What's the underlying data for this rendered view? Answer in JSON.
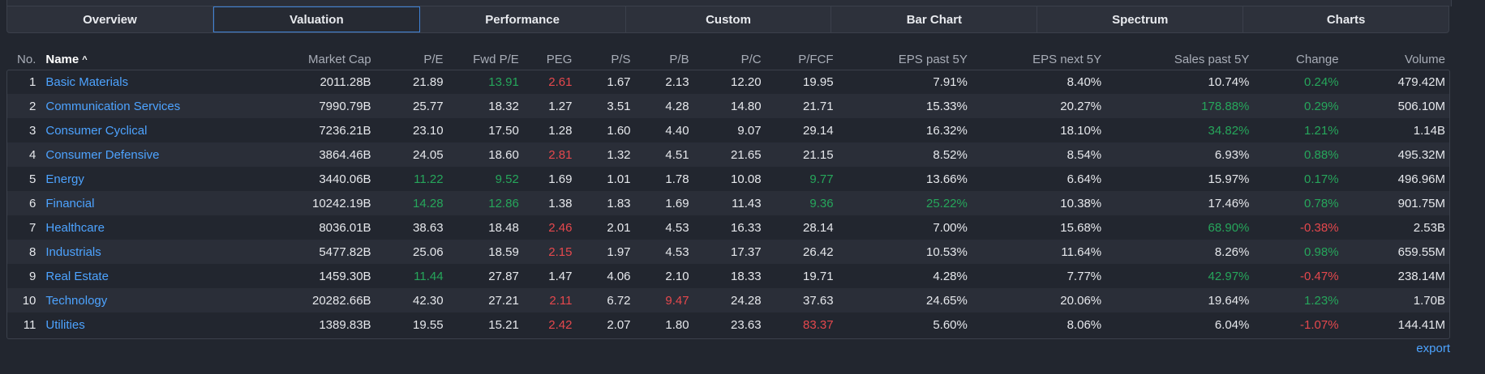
{
  "tabs": [
    "Overview",
    "Valuation",
    "Performance",
    "Custom",
    "Bar Chart",
    "Spectrum",
    "Charts"
  ],
  "active_tab": "Valuation",
  "columns": [
    "No.",
    "Name",
    "Market Cap",
    "P/E",
    "Fwd P/E",
    "PEG",
    "P/S",
    "P/B",
    "P/C",
    "P/FCF",
    "EPS past 5Y",
    "EPS next 5Y",
    "Sales past 5Y",
    "Change",
    "Volume"
  ],
  "sorted_column": "Name",
  "sort_indicator": "^",
  "colors": {
    "positive": "#26a65b",
    "negative": "#e5484d",
    "link": "#4da3ff",
    "accent": "#3f82d6"
  },
  "rows": [
    {
      "no": "1",
      "name": "Basic Materials",
      "market_cap": "2011.28B",
      "pe": "21.89",
      "fwd_pe": "13.91",
      "peg": "2.61",
      "ps": "1.67",
      "pb": "2.13",
      "pc": "12.20",
      "pfcf": "19.95",
      "eps_past_5y": "7.91%",
      "eps_next_5y": "8.40%",
      "sales_past_5y": "10.74%",
      "change": "0.24%",
      "volume": "479.42M",
      "colors": {
        "fwd_pe": "pos",
        "peg": "neg",
        "change": "pos"
      }
    },
    {
      "no": "2",
      "name": "Communication Services",
      "market_cap": "7990.79B",
      "pe": "25.77",
      "fwd_pe": "18.32",
      "peg": "1.27",
      "ps": "3.51",
      "pb": "4.28",
      "pc": "14.80",
      "pfcf": "21.71",
      "eps_past_5y": "15.33%",
      "eps_next_5y": "20.27%",
      "sales_past_5y": "178.88%",
      "change": "0.29%",
      "volume": "506.10M",
      "colors": {
        "sales_past_5y": "pos",
        "change": "pos"
      }
    },
    {
      "no": "3",
      "name": "Consumer Cyclical",
      "market_cap": "7236.21B",
      "pe": "23.10",
      "fwd_pe": "17.50",
      "peg": "1.28",
      "ps": "1.60",
      "pb": "4.40",
      "pc": "9.07",
      "pfcf": "29.14",
      "eps_past_5y": "16.32%",
      "eps_next_5y": "18.10%",
      "sales_past_5y": "34.82%",
      "change": "1.21%",
      "volume": "1.14B",
      "colors": {
        "sales_past_5y": "pos",
        "change": "pos"
      }
    },
    {
      "no": "4",
      "name": "Consumer Defensive",
      "market_cap": "3864.46B",
      "pe": "24.05",
      "fwd_pe": "18.60",
      "peg": "2.81",
      "ps": "1.32",
      "pb": "4.51",
      "pc": "21.65",
      "pfcf": "21.15",
      "eps_past_5y": "8.52%",
      "eps_next_5y": "8.54%",
      "sales_past_5y": "6.93%",
      "change": "0.88%",
      "volume": "495.32M",
      "colors": {
        "peg": "neg",
        "change": "pos"
      }
    },
    {
      "no": "5",
      "name": "Energy",
      "market_cap": "3440.06B",
      "pe": "11.22",
      "fwd_pe": "9.52",
      "peg": "1.69",
      "ps": "1.01",
      "pb": "1.78",
      "pc": "10.08",
      "pfcf": "9.77",
      "eps_past_5y": "13.66%",
      "eps_next_5y": "6.64%",
      "sales_past_5y": "15.97%",
      "change": "0.17%",
      "volume": "496.96M",
      "colors": {
        "pe": "pos",
        "fwd_pe": "pos",
        "pfcf": "pos",
        "change": "pos"
      }
    },
    {
      "no": "6",
      "name": "Financial",
      "market_cap": "10242.19B",
      "pe": "14.28",
      "fwd_pe": "12.86",
      "peg": "1.38",
      "ps": "1.83",
      "pb": "1.69",
      "pc": "11.43",
      "pfcf": "9.36",
      "eps_past_5y": "25.22%",
      "eps_next_5y": "10.38%",
      "sales_past_5y": "17.46%",
      "change": "0.78%",
      "volume": "901.75M",
      "colors": {
        "pe": "pos",
        "fwd_pe": "pos",
        "pfcf": "pos",
        "eps_past_5y": "pos",
        "change": "pos"
      }
    },
    {
      "no": "7",
      "name": "Healthcare",
      "market_cap": "8036.01B",
      "pe": "38.63",
      "fwd_pe": "18.48",
      "peg": "2.46",
      "ps": "2.01",
      "pb": "4.53",
      "pc": "16.33",
      "pfcf": "28.14",
      "eps_past_5y": "7.00%",
      "eps_next_5y": "15.68%",
      "sales_past_5y": "68.90%",
      "change": "-0.38%",
      "volume": "2.53B",
      "colors": {
        "peg": "neg",
        "sales_past_5y": "pos",
        "change": "neg"
      }
    },
    {
      "no": "8",
      "name": "Industrials",
      "market_cap": "5477.82B",
      "pe": "25.06",
      "fwd_pe": "18.59",
      "peg": "2.15",
      "ps": "1.97",
      "pb": "4.53",
      "pc": "17.37",
      "pfcf": "26.42",
      "eps_past_5y": "10.53%",
      "eps_next_5y": "11.64%",
      "sales_past_5y": "8.26%",
      "change": "0.98%",
      "volume": "659.55M",
      "colors": {
        "peg": "neg",
        "change": "pos"
      }
    },
    {
      "no": "9",
      "name": "Real Estate",
      "market_cap": "1459.30B",
      "pe": "11.44",
      "fwd_pe": "27.87",
      "peg": "1.47",
      "ps": "4.06",
      "pb": "2.10",
      "pc": "18.33",
      "pfcf": "19.71",
      "eps_past_5y": "4.28%",
      "eps_next_5y": "7.77%",
      "sales_past_5y": "42.97%",
      "change": "-0.47%",
      "volume": "238.14M",
      "colors": {
        "pe": "pos",
        "sales_past_5y": "pos",
        "change": "neg"
      }
    },
    {
      "no": "10",
      "name": "Technology",
      "market_cap": "20282.66B",
      "pe": "42.30",
      "fwd_pe": "27.21",
      "peg": "2.11",
      "ps": "6.72",
      "pb": "9.47",
      "pc": "24.28",
      "pfcf": "37.63",
      "eps_past_5y": "24.65%",
      "eps_next_5y": "20.06%",
      "sales_past_5y": "19.64%",
      "change": "1.23%",
      "volume": "1.70B",
      "colors": {
        "peg": "neg",
        "pb": "neg",
        "change": "pos"
      }
    },
    {
      "no": "11",
      "name": "Utilities",
      "market_cap": "1389.83B",
      "pe": "19.55",
      "fwd_pe": "15.21",
      "peg": "2.42",
      "ps": "2.07",
      "pb": "1.80",
      "pc": "23.63",
      "pfcf": "83.37",
      "eps_past_5y": "5.60%",
      "eps_next_5y": "8.06%",
      "sales_past_5y": "6.04%",
      "change": "-1.07%",
      "volume": "144.41M",
      "colors": {
        "peg": "neg",
        "pfcf": "neg",
        "change": "neg"
      }
    }
  ],
  "export_label": "export"
}
